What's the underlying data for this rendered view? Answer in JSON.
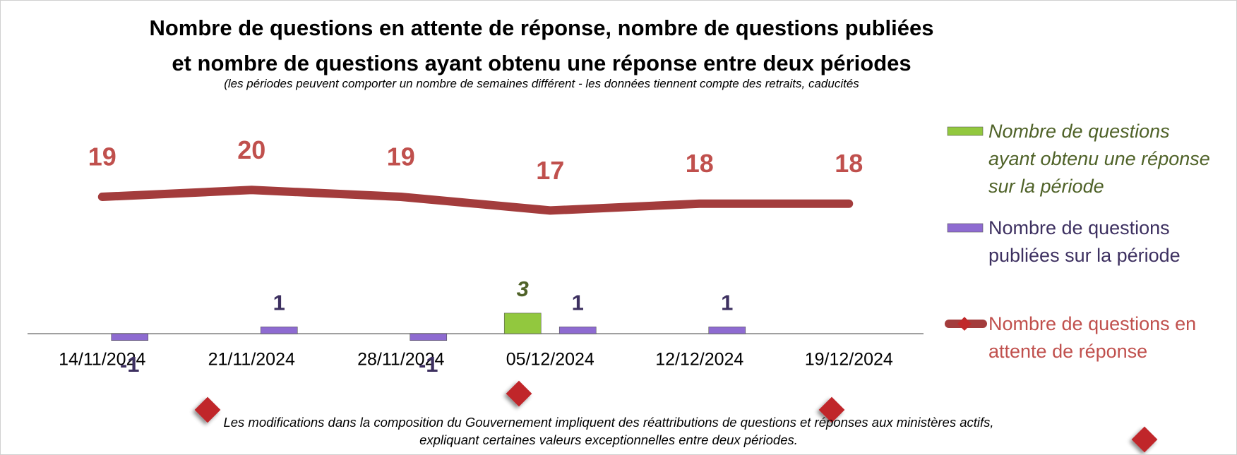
{
  "chart_data": {
    "type": "bar",
    "title": "Nombre de questions en attente de réponse, nombre de questions publiées\net nombre de questions ayant obtenu une réponse entre deux périodes",
    "subtitle": "(les périodes peuvent comporter un nombre de semaines différent - les données tiennent compte des retraits, caducités",
    "footnote": "Les modifications dans la composition du Gouvernement impliquent des réattributions de questions et réponses aux ministères actifs,\nexpliquant certaines valeurs exceptionnelles entre deux périodes.",
    "categories": [
      "14/11/2024",
      "21/11/2024",
      "28/11/2024",
      "05/12/2024",
      "12/12/2024",
      "19/12/2024"
    ],
    "series": [
      {
        "name": "Nombre de questions\nayant obtenu une réponse\nsur la période",
        "color": "#92c83e",
        "label_color": "#4f6228",
        "values": [
          null,
          null,
          null,
          3,
          null,
          null
        ]
      },
      {
        "name": "Nombre de questions\npubliées sur la période",
        "color": "#8e6bd1",
        "label_color": "#3d3060",
        "values": [
          -1,
          1,
          -1,
          1,
          1,
          null
        ]
      },
      {
        "name": "Nombre de questions en\nattente de réponse",
        "color": "#a33c3c",
        "label_color": "#c0504d",
        "type": "line",
        "axis": "y2",
        "values": [
          19,
          20,
          19,
          17,
          18,
          18
        ]
      }
    ],
    "ylim": [
      -15,
      35
    ],
    "y2lim": [
      -16,
      34
    ],
    "legend": "right"
  }
}
